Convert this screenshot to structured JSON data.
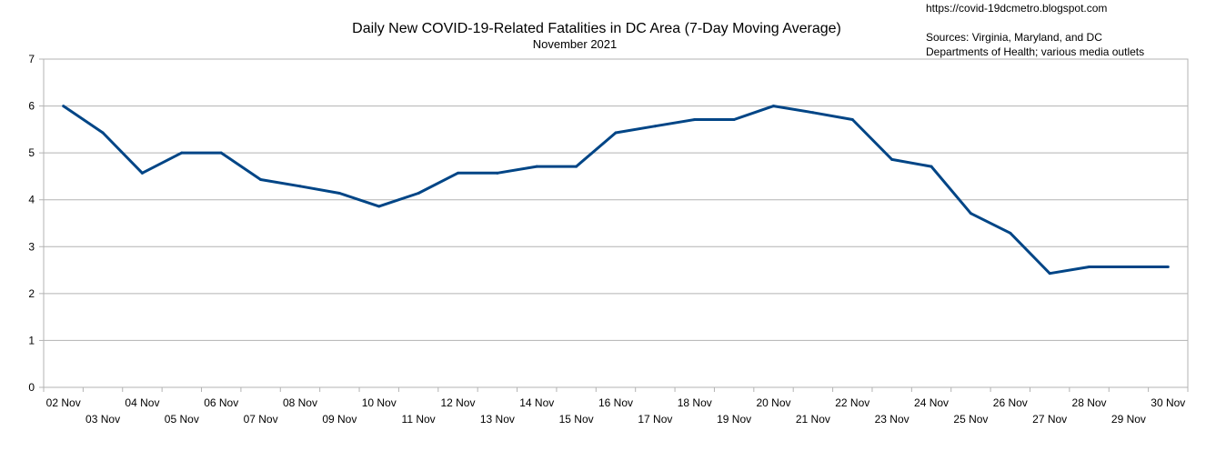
{
  "chart_data": {
    "type": "line",
    "title": "Daily New  COVID-19-Related Fatalities in DC Area (7-Day Moving Average)",
    "subtitle": "November 2021",
    "source_url": "https://covid-19dcmetro.blogspot.com",
    "source_line1": "Sources: Virginia, Maryland, and DC",
    "source_line2": "Departments of Health; various media outlets",
    "xlabel": "",
    "ylabel": "",
    "ylim": [
      0,
      7
    ],
    "yticks": [
      "0",
      "1",
      "2",
      "3",
      "4",
      "5",
      "6",
      "7"
    ],
    "grid": true,
    "line_color": "#004586",
    "categories": [
      "02 Nov",
      "03 Nov",
      "04 Nov",
      "05 Nov",
      "06 Nov",
      "07 Nov",
      "08 Nov",
      "09 Nov",
      "10 Nov",
      "11 Nov",
      "12 Nov",
      "13 Nov",
      "14 Nov",
      "15 Nov",
      "16 Nov",
      "17 Nov",
      "18 Nov",
      "19 Nov",
      "20 Nov",
      "21 Nov",
      "22 Nov",
      "23 Nov",
      "24 Nov",
      "25 Nov",
      "26 Nov",
      "27 Nov",
      "28 Nov",
      "29 Nov",
      "30 Nov"
    ],
    "series": [
      {
        "values": [
          6.0,
          5.43,
          4.57,
          5.0,
          5.0,
          4.43,
          4.29,
          4.14,
          3.86,
          4.14,
          4.57,
          4.57,
          4.71,
          4.71,
          5.43,
          5.57,
          5.71,
          5.71,
          6.0,
          5.86,
          5.71,
          4.86,
          4.71,
          3.71,
          3.29,
          2.43,
          2.57,
          2.57,
          2.57
        ]
      }
    ]
  }
}
